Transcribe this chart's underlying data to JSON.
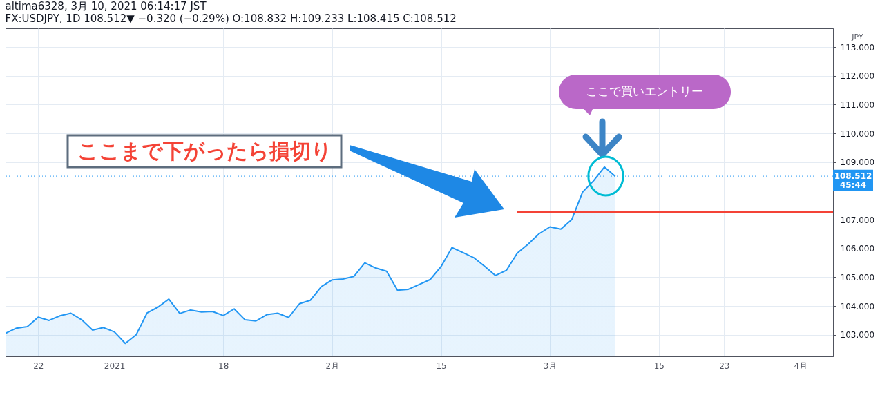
{
  "chart_data": {
    "type": "area",
    "title": "altima6328, 3月 10, 2021 06:14:17 JST",
    "subtitle": "FX:USDJPY, 1D 108.512▼ −0.320 (−0.29%) O:108.832 H:109.233 L:108.415 C:108.512",
    "ylabel": "JPY",
    "categories": [
      null,
      null,
      null,
      "22",
      null,
      null,
      null,
      null,
      null,
      null,
      "2021",
      null,
      null,
      null,
      null,
      null,
      null,
      null,
      null,
      null,
      "18",
      null,
      null,
      null,
      null,
      null,
      null,
      null,
      null,
      null,
      "2月",
      null,
      null,
      null,
      null,
      null,
      null,
      null,
      null,
      null,
      "15",
      null,
      null,
      null,
      null,
      null,
      null,
      null,
      null,
      null,
      "3月",
      null,
      null,
      null,
      null,
      null,
      null,
      null,
      null,
      null,
      "15",
      null,
      null,
      null,
      null,
      null,
      "23",
      null,
      null,
      null,
      null,
      null,
      null,
      "4月",
      null,
      null,
      null
    ],
    "series": [
      {
        "color": "#2196f3",
        "values": [
          103.05,
          103.23,
          103.28,
          103.61,
          103.5,
          103.66,
          103.75,
          103.52,
          103.16,
          103.25,
          103.1,
          102.7,
          103.0,
          103.76,
          103.96,
          104.24,
          103.74,
          103.86,
          103.79,
          103.81,
          103.67,
          103.9,
          103.52,
          103.48,
          103.7,
          103.75,
          103.6,
          104.08,
          104.2,
          104.67,
          104.91,
          104.94,
          105.03,
          105.5,
          105.32,
          105.21,
          104.55,
          104.58,
          104.75,
          104.92,
          105.37,
          106.03,
          105.86,
          105.68,
          105.38,
          105.06,
          105.24,
          105.84,
          106.15,
          106.51,
          106.75,
          106.67,
          107.0,
          107.96,
          108.35,
          108.83,
          108.51,
          null,
          null,
          null,
          null,
          null,
          null,
          null,
          null,
          null,
          null,
          null,
          null,
          null,
          null,
          null,
          null,
          null,
          null,
          null,
          null
        ]
      },
      {
        "type": "line",
        "color": "#f44336",
        "values": [
          null,
          null,
          null,
          null,
          null,
          null,
          null,
          null,
          null,
          null,
          null,
          null,
          null,
          null,
          null,
          null,
          null,
          null,
          null,
          null,
          null,
          null,
          null,
          null,
          null,
          null,
          null,
          null,
          null,
          null,
          null,
          null,
          null,
          null,
          null,
          null,
          null,
          null,
          null,
          null,
          null,
          null,
          null,
          null,
          null,
          null,
          null,
          107.27,
          107.27,
          107.27,
          107.27,
          107.27,
          107.27,
          107.27,
          107.27,
          107.27,
          107.27,
          107.27,
          107.27,
          107.27,
          107.27,
          107.27,
          107.27,
          107.27,
          107.27,
          107.27,
          107.27,
          107.27,
          107.27,
          107.27,
          107.27,
          107.27,
          107.27,
          107.27,
          107.27,
          107.27,
          107.27
        ]
      }
    ],
    "ylim": [
      102.25,
      113.65
    ],
    "yticks": [
      {
        "value": 103,
        "label": "103.000"
      },
      {
        "value": 104,
        "label": "104.000"
      },
      {
        "value": 105,
        "label": "105.000"
      },
      {
        "value": 106,
        "label": "106.000"
      },
      {
        "value": 107,
        "label": "107.000"
      },
      {
        "value": 108,
        "label": null
      },
      {
        "value": 109,
        "label": "109.000"
      },
      {
        "value": 110,
        "label": "110.000"
      },
      {
        "value": 111,
        "label": "111.000"
      },
      {
        "value": 112,
        "label": "112.000"
      },
      {
        "value": 113,
        "label": "113.000"
      }
    ],
    "ref_lines": [
      {
        "axis": "y",
        "value": 108.512,
        "label": "108.512",
        "color": "#2196f3",
        "line_style": "dotted"
      }
    ],
    "annotations": [
      "ここまで下がったら損切り",
      "ここで買いエントリー",
      "45:44"
    ],
    "grid": true
  }
}
